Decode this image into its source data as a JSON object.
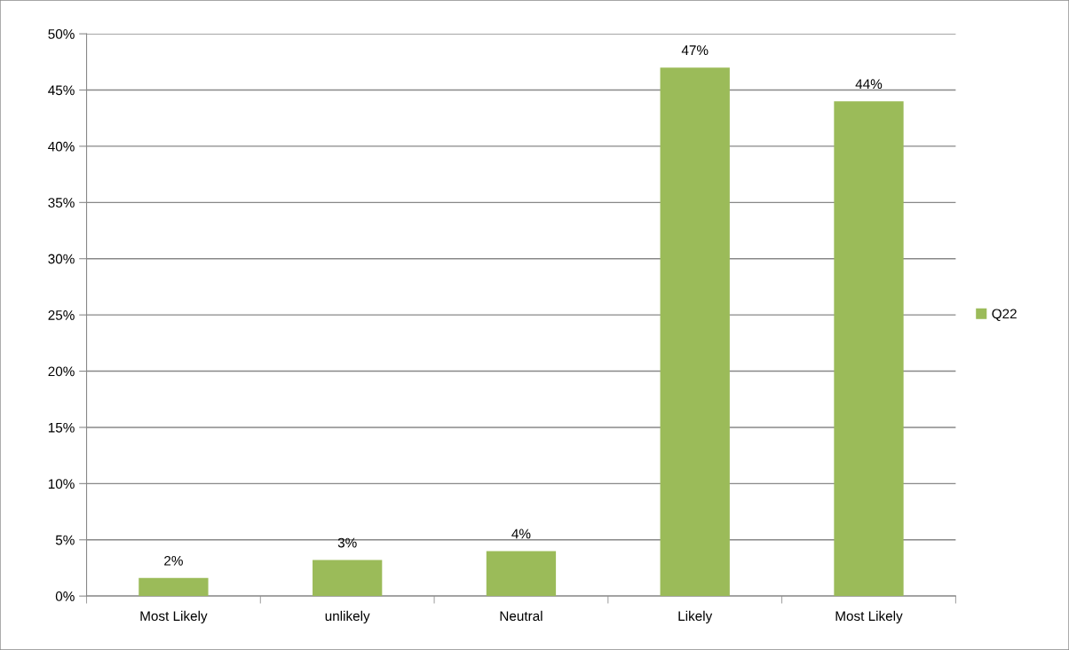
{
  "chart_data": {
    "type": "bar",
    "categories": [
      "Most Likely",
      "unlikely",
      "Neutral",
      "Likely",
      "Most Likely"
    ],
    "series": [
      {
        "name": "Q22",
        "color": "#9bbb59",
        "values": [
          1.6,
          3.2,
          4,
          47,
          44
        ],
        "value_labels": [
          "2%",
          "3%",
          "4%",
          "47%",
          "44%"
        ]
      }
    ],
    "ylim": [
      0,
      50
    ],
    "yticks": [
      {
        "value": 0,
        "label": "0%"
      },
      {
        "value": 5,
        "label": "5%"
      },
      {
        "value": 10,
        "label": "10%"
      },
      {
        "value": 15,
        "label": "15%"
      },
      {
        "value": 20,
        "label": "20%"
      },
      {
        "value": 25,
        "label": "25%"
      },
      {
        "value": 30,
        "label": "30%"
      },
      {
        "value": 35,
        "label": "35%"
      },
      {
        "value": 40,
        "label": "40%"
      },
      {
        "value": 45,
        "label": "45%"
      },
      {
        "value": 50,
        "label": "50%"
      }
    ],
    "grid": "y",
    "legend": "right"
  }
}
